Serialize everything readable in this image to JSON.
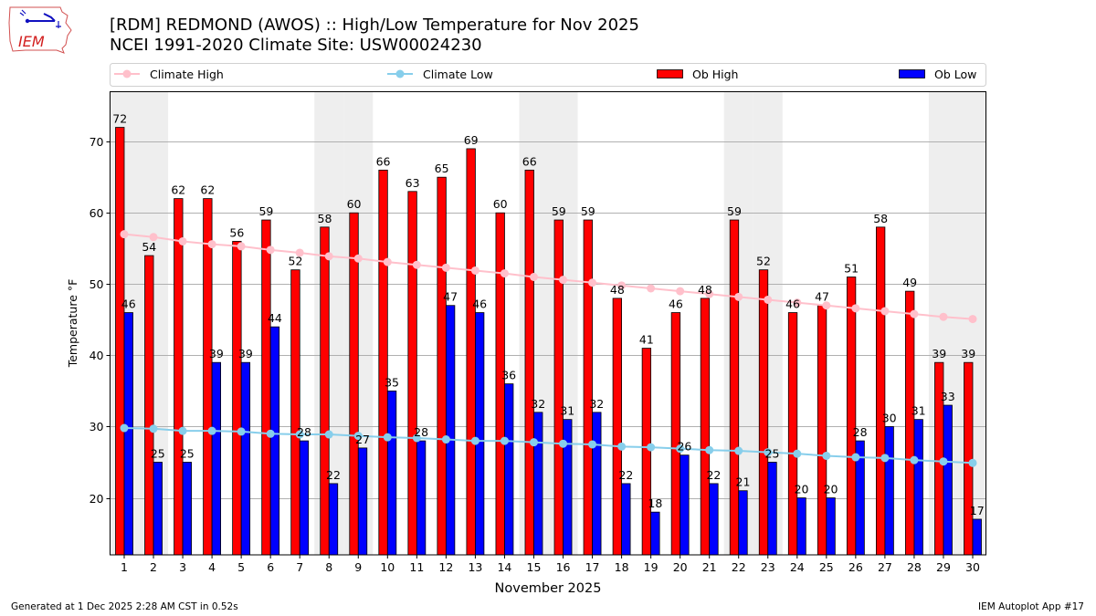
{
  "header": {
    "logo_text": "IEM",
    "title_line1": "[RDM] REDMOND (AWOS) :: High/Low Temperature for Nov 2025",
    "title_line2": "NCEI 1991-2020 Climate Site: USW00024230"
  },
  "footer": {
    "generated": "Generated at 1 Dec 2025 2:28 AM CST in 0.52s",
    "app": "IEM Autoplot App #17"
  },
  "colors": {
    "ob_high": "#ff0000",
    "ob_low": "#0000ff",
    "climate_high": "#ffc0cb",
    "climate_low": "#87ceeb",
    "weekend_shade": "#eeeeee",
    "grid": "#b0b0b0"
  },
  "chart_data": {
    "type": "bar",
    "title": "[RDM] REDMOND (AWOS) :: High/Low Temperature for Nov 2025",
    "subtitle": "NCEI 1991-2020 Climate Site: USW00024230",
    "xlabel": "November 2025",
    "ylabel": "Temperature °F",
    "ylim": [
      12,
      77
    ],
    "yticks": [
      20,
      30,
      40,
      50,
      60,
      70
    ],
    "grid": "y",
    "legend_position": "top (above plot, single row)",
    "categories": [
      1,
      2,
      3,
      4,
      5,
      6,
      7,
      8,
      9,
      10,
      11,
      12,
      13,
      14,
      15,
      16,
      17,
      18,
      19,
      20,
      21,
      22,
      23,
      24,
      25,
      26,
      27,
      28,
      29,
      30
    ],
    "weekend_days": [
      1,
      2,
      8,
      9,
      15,
      16,
      22,
      23,
      29,
      30
    ],
    "series": [
      {
        "name": "Ob High",
        "kind": "bar",
        "values": [
          72,
          54,
          62,
          62,
          56,
          59,
          52,
          58,
          60,
          66,
          63,
          65,
          69,
          60,
          66,
          59,
          59,
          48,
          41,
          46,
          48,
          59,
          52,
          46,
          47,
          51,
          58,
          49,
          39,
          39
        ]
      },
      {
        "name": "Ob Low",
        "kind": "bar",
        "values": [
          46,
          25,
          25,
          39,
          39,
          44,
          28,
          22,
          27,
          35,
          28,
          47,
          46,
          36,
          32,
          31,
          32,
          22,
          18,
          26,
          22,
          21,
          25,
          20,
          20,
          28,
          30,
          31,
          33,
          17
        ]
      },
      {
        "name": "Climate High",
        "kind": "line",
        "values": [
          57.0,
          56.6,
          56.0,
          55.6,
          55.3,
          54.8,
          54.4,
          53.9,
          53.6,
          53.1,
          52.7,
          52.3,
          51.9,
          51.5,
          51.0,
          50.6,
          50.2,
          49.8,
          49.4,
          49.0,
          48.6,
          48.2,
          47.8,
          47.4,
          47.0,
          46.6,
          46.2,
          45.8,
          45.4,
          45.1
        ]
      },
      {
        "name": "Climate Low",
        "kind": "line",
        "values": [
          29.8,
          29.7,
          29.4,
          29.4,
          29.3,
          29.0,
          28.9,
          28.9,
          28.7,
          28.5,
          28.4,
          28.2,
          28.0,
          28.0,
          27.8,
          27.6,
          27.5,
          27.2,
          27.1,
          26.9,
          26.7,
          26.6,
          26.4,
          26.2,
          25.9,
          25.7,
          25.6,
          25.3,
          25.1,
          24.9
        ]
      }
    ]
  }
}
